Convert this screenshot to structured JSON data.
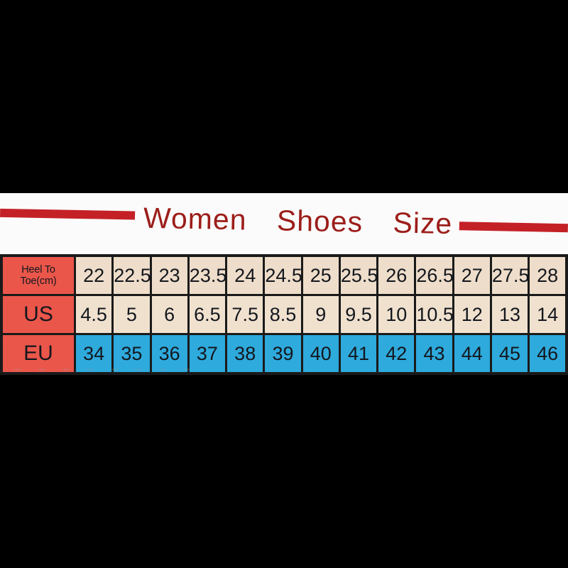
{
  "page": {
    "background": "#000000",
    "band_background": "#fbfbfb"
  },
  "header": {
    "title": "Women Shoes Size",
    "title_color": "#9c1e1a",
    "rule_color": "#c42127"
  },
  "table": {
    "border_color": "#1a1a1a",
    "label_col_bg": "#eb564b",
    "row_backgrounds": [
      "#eeddca",
      "#f0e1cf",
      "#2eaadd"
    ],
    "text_color": "#13171d"
  },
  "chart_data": {
    "type": "table",
    "title": "Women Shoes Size",
    "rows": [
      {
        "label": "Heel To Toe(cm)",
        "values": [
          "22",
          "22.5",
          "23",
          "23.5",
          "24",
          "24.5",
          "25",
          "25.5",
          "26",
          "26.5",
          "27",
          "27.5",
          "28"
        ]
      },
      {
        "label": "US",
        "values": [
          "4.5",
          "5",
          "6",
          "6.5",
          "7.5",
          "8.5",
          "9",
          "9.5",
          "10",
          "10.5",
          "12",
          "13",
          "14"
        ]
      },
      {
        "label": "EU",
        "values": [
          "34",
          "35",
          "36",
          "37",
          "38",
          "39",
          "40",
          "41",
          "42",
          "43",
          "44",
          "45",
          "46"
        ]
      }
    ]
  }
}
